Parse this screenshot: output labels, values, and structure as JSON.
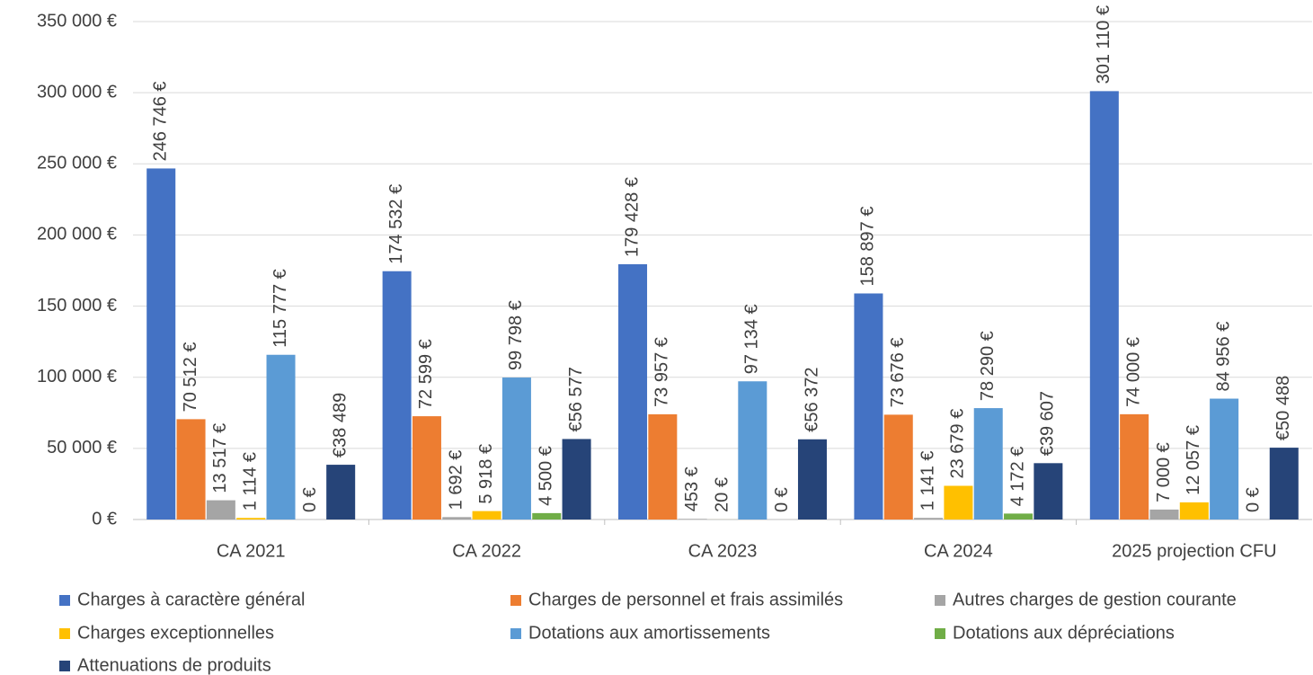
{
  "chart_data": {
    "type": "bar",
    "categories": [
      "CA 2021",
      "CA 2022",
      "CA 2023",
      "CA 2024",
      "2025 projection CFU"
    ],
    "series": [
      {
        "name": "Charges à caractère général",
        "color": "#4472c4",
        "values": [
          246746,
          174532,
          179428,
          158897,
          301110
        ],
        "value_labels": [
          "246 746 €",
          "174 532 €",
          "179 428 €",
          "158 897 €",
          "301 110 €"
        ]
      },
      {
        "name": "Charges de personnel et frais assimilés",
        "color": "#ed7d31",
        "values": [
          70512,
          72599,
          73957,
          73676,
          74000
        ],
        "value_labels": [
          "70 512 €",
          "72 599 €",
          "73 957 €",
          "73 676 €",
          "74 000 €"
        ]
      },
      {
        "name": "Autres charges de gestion courante",
        "color": "#a5a5a5",
        "values": [
          13517,
          1692,
          453,
          1141,
          7000
        ],
        "value_labels": [
          "13 517 €",
          "1 692 €",
          "453 €",
          "1 141 €",
          "7 000 €"
        ]
      },
      {
        "name": "Charges exceptionnelles",
        "color": "#ffc000",
        "values": [
          1114,
          5918,
          20,
          23679,
          12057
        ],
        "value_labels": [
          "1 114 €",
          "5 918 €",
          "20 €",
          "23 679 €",
          "12 057 €"
        ]
      },
      {
        "name": "Dotations aux amortissements",
        "color": "#5b9bd5",
        "values": [
          115777,
          99798,
          97134,
          78290,
          84956
        ],
        "value_labels": [
          "115 777 €",
          "99 798 €",
          "97 134 €",
          "78 290 €",
          "84 956 €"
        ]
      },
      {
        "name": "Dotations aux dépréciations",
        "color": "#70ad47",
        "values": [
          0,
          4500,
          0,
          4172,
          0
        ],
        "value_labels": [
          "0 €",
          "4 500 €",
          "0 €",
          "4 172 €",
          "0 €"
        ]
      },
      {
        "name": "Attenuations de produits",
        "color": "#264478",
        "values": [
          38489,
          56577,
          56372,
          39607,
          50488
        ],
        "value_labels": [
          "€38 489",
          "€56 577",
          "€56 372",
          "€39 607",
          "€50 488"
        ]
      }
    ],
    "ylim": [
      0,
      350000
    ],
    "yticks": [
      {
        "value": 0,
        "label": "0 €"
      },
      {
        "value": 50000,
        "label": "50 000 €"
      },
      {
        "value": 100000,
        "label": "100 000 €"
      },
      {
        "value": 150000,
        "label": "150 000 €"
      },
      {
        "value": 200000,
        "label": "200 000 €"
      },
      {
        "value": 250000,
        "label": "250 000 €"
      },
      {
        "value": 300000,
        "label": "300 000 €"
      },
      {
        "value": 350000,
        "label": "350 000 €"
      }
    ],
    "grid": true,
    "legend": "bottom"
  }
}
